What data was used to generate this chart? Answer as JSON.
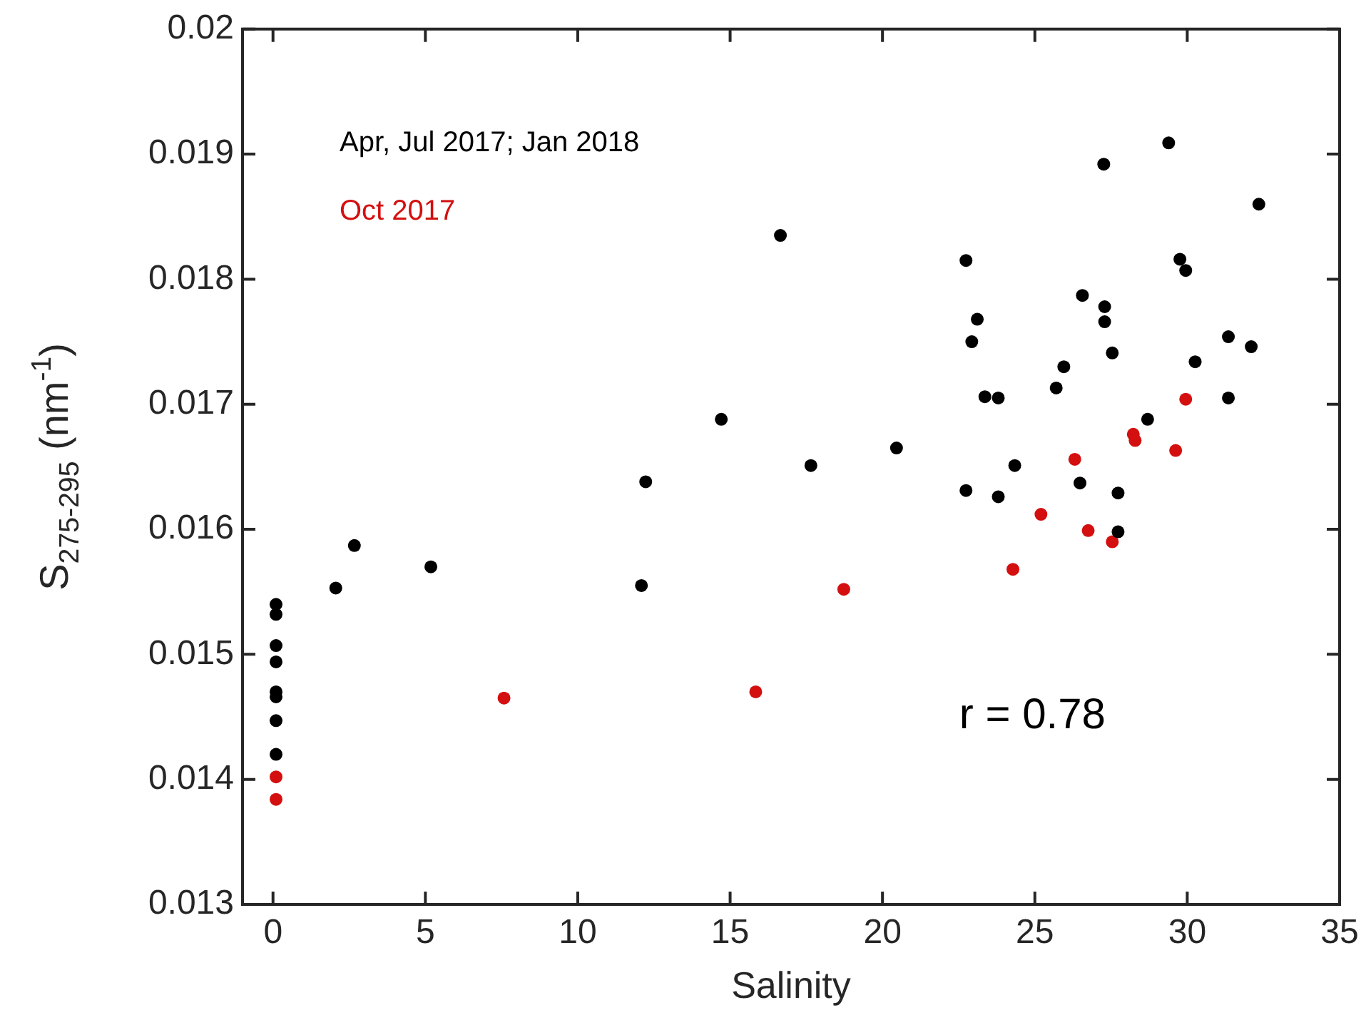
{
  "chart_data": {
    "type": "scatter",
    "xlabel": "Salinity",
    "ylabel": "S$_{275-295}$ (nm$^{-1}$)",
    "annotations": [
      "r = 0.78"
    ],
    "legend": "top left",
    "marker": "circle",
    "grid": false,
    "xlim": [
      -1,
      35
    ],
    "xticks": [
      0,
      5,
      10,
      15,
      20,
      25,
      30,
      35
    ],
    "ylim": [
      0.013,
      0.02
    ],
    "yticks": [
      0.013,
      0.014,
      0.015,
      0.016,
      0.017,
      0.018,
      0.019,
      0.02
    ],
    "series": [
      {
        "name": "Apr, Jul 2017; Jan 2018",
        "color": "#000000",
        "x": [
          0.1,
          0.1,
          0.1,
          0.1,
          0.1,
          0.1,
          0.1,
          0.1,
          2.06,
          2.67,
          5.18,
          12.09,
          12.23,
          14.71,
          16.65,
          17.65,
          20.46,
          22.74,
          23.11,
          22.93,
          23.36,
          23.8,
          25.95,
          25.7,
          26.56,
          27.29,
          27.29,
          27.54,
          29.76,
          29.95,
          32.35,
          31.35,
          32.1,
          30.26,
          31.35,
          28.7,
          22.74,
          23.8,
          24.34,
          26.48,
          27.73,
          27.73,
          27.26,
          29.39
        ],
        "values": [
          0.0154,
          0.01532,
          0.01507,
          0.01494,
          0.0147,
          0.01466,
          0.01447,
          0.0142,
          0.01553,
          0.01587,
          0.0157,
          0.01555,
          0.01638,
          0.01688,
          0.01835,
          0.01651,
          0.01665,
          0.01815,
          0.01768,
          0.0175,
          0.01706,
          0.01705,
          0.0173,
          0.01713,
          0.01787,
          0.01778,
          0.01766,
          0.01741,
          0.01816,
          0.01807,
          0.0186,
          0.01754,
          0.01746,
          0.01734,
          0.01705,
          0.01688,
          0.01631,
          0.01626,
          0.01651,
          0.01637,
          0.01629,
          0.01598,
          0.01892,
          0.01909
        ]
      },
      {
        "name": "Oct 2017",
        "color": "#d40f0f",
        "x": [
          0.1,
          0.1,
          7.58,
          15.84,
          18.73,
          24.28,
          25.2,
          26.31,
          26.75,
          27.54,
          28.23,
          28.29,
          29.62,
          29.95
        ],
        "values": [
          0.01402,
          0.01384,
          0.01465,
          0.0147,
          0.01552,
          0.01568,
          0.01612,
          0.01656,
          0.01599,
          0.0159,
          0.01676,
          0.01671,
          0.01663,
          0.01704
        ]
      }
    ]
  }
}
